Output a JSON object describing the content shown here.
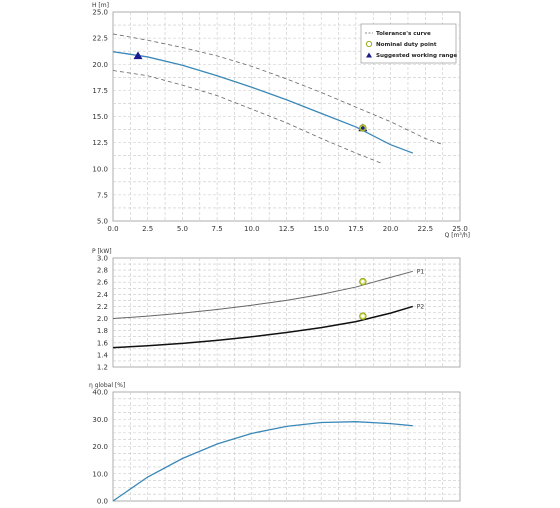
{
  "chart_data": [
    {
      "type": "line",
      "ylabel": "H [m]",
      "xlabel": "Q [m³/h]",
      "xlim": [
        0,
        25
      ],
      "ylim": [
        5,
        25
      ],
      "xticks": [
        "0.0",
        "2.5",
        "5.0",
        "7.5",
        "10.0",
        "12.5",
        "15.0",
        "17.5",
        "20.0",
        "22.5",
        "25.0"
      ],
      "yticks": [
        "5.0",
        "7.5",
        "10.0",
        "12.5",
        "15.0",
        "17.5",
        "20.0",
        "22.5",
        "25.0"
      ],
      "grid": true,
      "legend": {
        "position": "top-right",
        "entries": [
          "Tolerance's curve",
          "Nominal duty point",
          "Suggested working range"
        ]
      },
      "series": [
        {
          "name": "",
          "color": "#3a88b8",
          "style": "solid",
          "x": [
            0,
            2.5,
            5,
            7.5,
            10,
            12.5,
            15,
            17.5,
            20,
            21.6
          ],
          "y": [
            21.2,
            20.7,
            19.9,
            18.9,
            17.8,
            16.6,
            15.3,
            14.0,
            12.3,
            11.5
          ]
        },
        {
          "name": "Tolerance's curve",
          "color": "#666666",
          "style": "dashed",
          "x": [
            0,
            2.5,
            5,
            7.5,
            10,
            12.5,
            15,
            17.5,
            20,
            22.5,
            23.8
          ],
          "y": [
            22.9,
            22.3,
            21.6,
            20.8,
            19.8,
            18.6,
            17.3,
            15.9,
            14.5,
            12.9,
            12.3
          ]
        },
        {
          "name": "Tolerance's curve",
          "color": "#666666",
          "style": "dashed",
          "x": [
            0,
            2.5,
            5,
            7.5,
            10,
            12.5,
            15,
            17.5,
            19.4
          ],
          "y": [
            19.4,
            18.9,
            18.0,
            17.0,
            15.7,
            14.4,
            12.9,
            11.5,
            10.5
          ]
        }
      ],
      "markers": [
        {
          "label": "Suggested working range",
          "shape": "triangle",
          "color": "#1a1a8c",
          "x": 1.8,
          "y": 20.8
        },
        {
          "label": "Suggested working range",
          "shape": "triangle",
          "color": "#1a1a8c",
          "x": 18.0,
          "y": 13.9
        },
        {
          "label": "Nominal duty point",
          "shape": "circle",
          "color": "#c8d640",
          "x": 18.0,
          "y": 13.9
        }
      ]
    },
    {
      "type": "line",
      "ylabel": "P [kW]",
      "xlim": [
        0,
        25
      ],
      "ylim": [
        1.2,
        3.0
      ],
      "yticks": [
        "1.2",
        "1.4",
        "1.6",
        "1.8",
        "2.0",
        "2.2",
        "2.4",
        "2.6",
        "2.8",
        "3.0"
      ],
      "grid": true,
      "series": [
        {
          "name": "P1",
          "color": "#666666",
          "style": "solid",
          "width": 1,
          "x": [
            0,
            2.5,
            5,
            7.5,
            10,
            12.5,
            15,
            17.5,
            20,
            21.6
          ],
          "y": [
            2.0,
            2.04,
            2.09,
            2.15,
            2.22,
            2.3,
            2.4,
            2.52,
            2.68,
            2.78
          ]
        },
        {
          "name": "P2",
          "color": "#111111",
          "style": "solid",
          "width": 1.5,
          "x": [
            0,
            2.5,
            5,
            7.5,
            10,
            12.5,
            15,
            17.5,
            20,
            21.6
          ],
          "y": [
            1.52,
            1.55,
            1.59,
            1.64,
            1.7,
            1.77,
            1.85,
            1.95,
            2.09,
            2.2
          ]
        }
      ],
      "markers": [
        {
          "label": "Nominal duty point",
          "shape": "circle",
          "color": "#c8d640",
          "x": 18.0,
          "y": 2.61
        },
        {
          "label": "Nominal duty point",
          "shape": "circle",
          "color": "#c8d640",
          "x": 18.0,
          "y": 2.04
        }
      ]
    },
    {
      "type": "line",
      "ylabel": "η global [%]",
      "xlim": [
        0,
        25
      ],
      "ylim": [
        0,
        40
      ],
      "yticks": [
        "0.0",
        "10.0",
        "20.0",
        "30.0",
        "40.0"
      ],
      "grid": true,
      "series": [
        {
          "name": "",
          "color": "#3a88b8",
          "style": "solid",
          "x": [
            0,
            2.5,
            5,
            7.5,
            10,
            12.5,
            15,
            17.5,
            20,
            21.6
          ],
          "y": [
            0,
            8.8,
            15.6,
            20.9,
            24.8,
            27.4,
            28.8,
            29.1,
            28.4,
            27.6
          ]
        }
      ]
    }
  ]
}
